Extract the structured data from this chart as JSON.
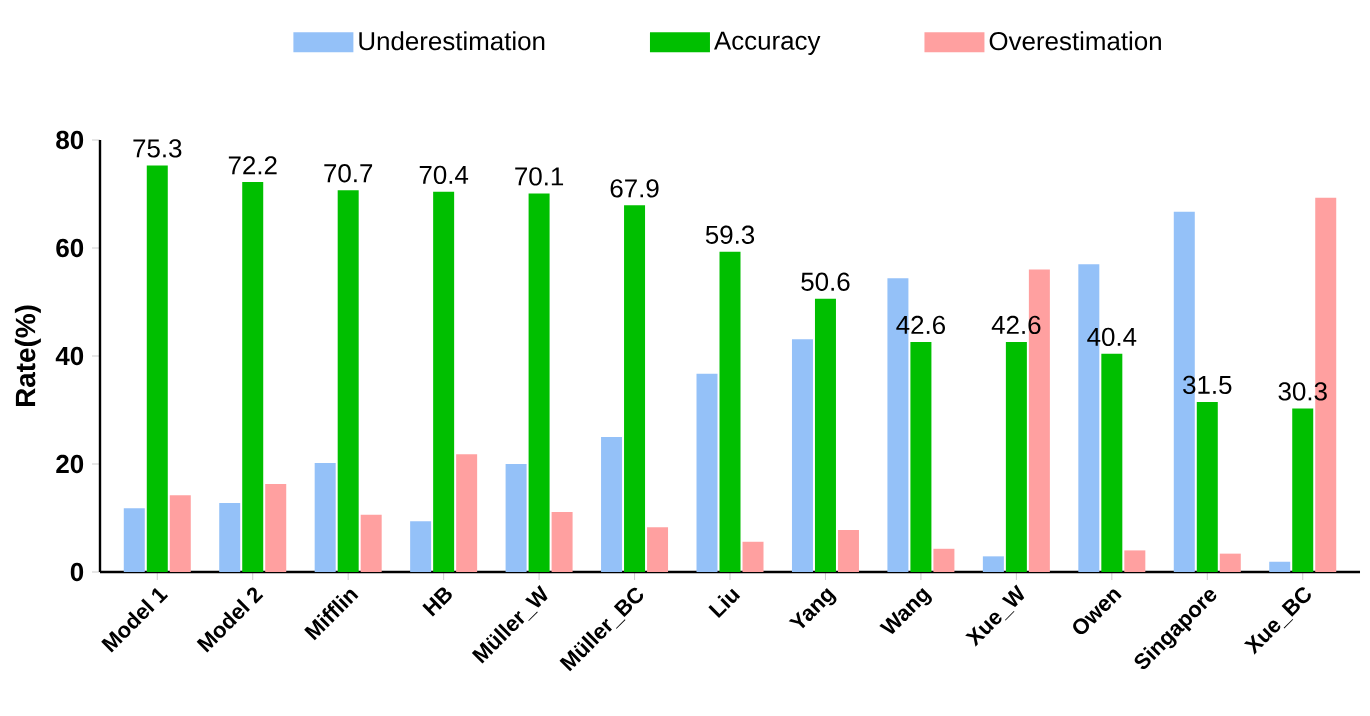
{
  "chart_data": {
    "type": "bar",
    "ylabel": "Rate(%)",
    "categories": [
      "Model 1",
      "Model 2",
      "Mifflin",
      "HB",
      "Müller_W",
      "Müller_BC",
      "Liu",
      "Yang",
      "Wang",
      "Xue_W",
      "Owen",
      "Singapore",
      "Xue_BC"
    ],
    "series": [
      {
        "name": "Underestimation",
        "color": "#94c1f8",
        "values": [
          11.8,
          12.8,
          20.2,
          9.4,
          20,
          25,
          36.7,
          43.1,
          54.4,
          2.9,
          57,
          66.7,
          1.9
        ]
      },
      {
        "name": "Accuracy",
        "color": "#00bf00",
        "values": [
          75.3,
          72.2,
          70.7,
          70.4,
          70.1,
          67.9,
          59.3,
          50.6,
          42.6,
          42.6,
          40.4,
          31.5,
          30.3
        ],
        "value_labels": [
          "75.3",
          "72.2",
          "70.7",
          "70.4",
          "70.1",
          "67.9",
          "59.3",
          "50.6",
          "42.6",
          "42.6",
          "40.4",
          "31.5",
          "30.3"
        ]
      },
      {
        "name": "Overestimation",
        "color": "#ffa0a0",
        "values": [
          14.2,
          16.3,
          10.6,
          21.8,
          11.1,
          8.3,
          5.6,
          7.8,
          4.3,
          56,
          4,
          3.4,
          69.3
        ]
      }
    ],
    "ylim": [
      0,
      80
    ],
    "yticks": [
      0,
      20,
      40,
      60,
      80
    ],
    "grid": false,
    "legend": "top"
  }
}
